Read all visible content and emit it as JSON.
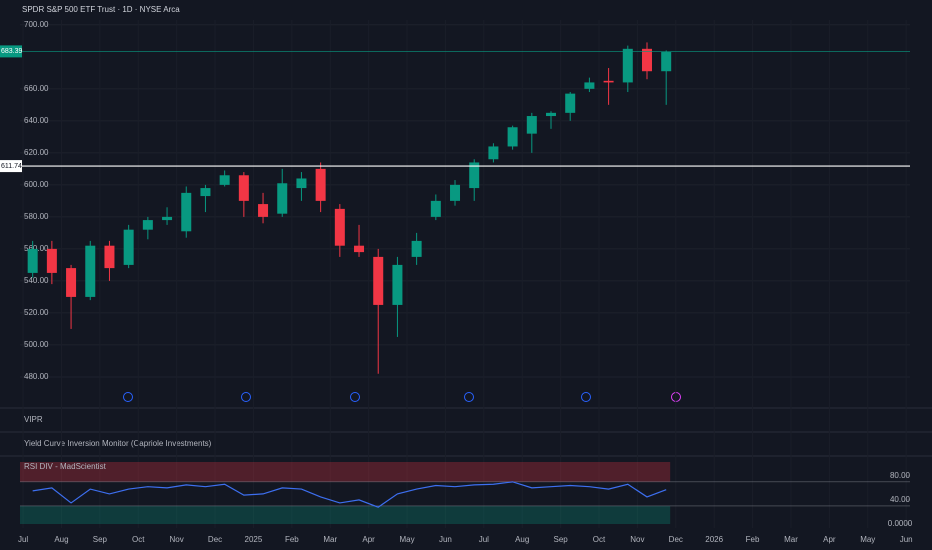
{
  "header": {
    "title": "SPDR S&P 500 ETF Trust · 1D · NYSE Arca"
  },
  "panels": [
    "VIPR",
    "Yield Curve Inversion Monitor (Capriole Investments)"
  ],
  "chart_data": [
    {
      "type": "candlestick",
      "x": [
        0.25,
        0.75,
        1.25,
        1.75,
        2.25,
        2.75,
        3.25,
        3.75,
        4.25,
        4.75,
        5.25,
        5.75,
        6.25,
        6.75,
        7.25,
        7.75,
        8.25,
        8.75,
        9.25,
        9.75,
        10.25,
        10.75,
        11.25,
        11.75,
        12.25,
        12.75,
        13.25,
        13.75,
        14.25,
        14.75,
        15.25,
        15.75,
        16.25,
        16.75
      ],
      "open": [
        545,
        560,
        548,
        530,
        562,
        550,
        572,
        578,
        571,
        593,
        600,
        606,
        588,
        582,
        598,
        610,
        585,
        562,
        555,
        525,
        555,
        580,
        590,
        598,
        616,
        624,
        632,
        643,
        645,
        660,
        665,
        664,
        685,
        671
      ],
      "high": [
        565,
        565,
        550,
        565,
        565,
        575,
        580,
        586,
        599,
        600,
        609,
        608,
        595,
        610,
        608,
        614,
        588,
        575,
        560,
        555,
        570,
        594,
        603,
        616,
        626,
        637,
        645,
        646,
        658,
        667,
        673,
        687,
        689,
        684
      ],
      "low": [
        542,
        538,
        510,
        528,
        540,
        548,
        566,
        575,
        567,
        583,
        599,
        580,
        576,
        580,
        590,
        583,
        555,
        555,
        482,
        505,
        550,
        578,
        587,
        590,
        614,
        622,
        620,
        635,
        640,
        658,
        650,
        658,
        666,
        650
      ],
      "close": [
        560,
        545,
        530,
        562,
        548,
        572,
        578,
        580,
        595,
        598,
        606,
        590,
        580,
        601,
        604,
        590,
        562,
        558,
        525,
        550,
        565,
        590,
        600,
        614,
        624,
        636,
        643,
        645,
        657,
        664,
        664,
        685,
        671,
        683
      ],
      "up_color": "#089981",
      "down_color": "#f23645",
      "xlim": [
        -0.08,
        23.1
      ],
      "xticks": [
        {
          "value": 0,
          "label": "Jul"
        },
        {
          "value": 1,
          "label": "Aug"
        },
        {
          "value": 2,
          "label": "Sep"
        },
        {
          "value": 3,
          "label": "Oct"
        },
        {
          "value": 4,
          "label": "Nov"
        },
        {
          "value": 5,
          "label": "Dec"
        },
        {
          "value": 6,
          "label": "2025"
        },
        {
          "value": 7,
          "label": "Feb"
        },
        {
          "value": 8,
          "label": "Mar"
        },
        {
          "value": 9,
          "label": "Apr"
        },
        {
          "value": 10,
          "label": "May"
        },
        {
          "value": 11,
          "label": "Jun"
        },
        {
          "value": 12,
          "label": "Jul"
        },
        {
          "value": 13,
          "label": "Aug"
        },
        {
          "value": 14,
          "label": "Sep"
        },
        {
          "value": 15,
          "label": "Oct"
        },
        {
          "value": 16,
          "label": "Nov"
        },
        {
          "value": 17,
          "label": "Dec"
        },
        {
          "value": 18,
          "label": "2026"
        },
        {
          "value": 19,
          "label": "Feb"
        },
        {
          "value": 20,
          "label": "Mar"
        },
        {
          "value": 21,
          "label": "Apr"
        },
        {
          "value": 22,
          "label": "May"
        },
        {
          "value": 23,
          "label": "Jun"
        }
      ],
      "ylim": [
        465.6,
        703
      ],
      "yticks": [
        {
          "value": 480,
          "label": "480.00"
        },
        {
          "value": 500,
          "label": "500.00"
        },
        {
          "value": 520,
          "label": "520.00"
        },
        {
          "value": 540,
          "label": "540.00"
        },
        {
          "value": 560,
          "label": "560.00"
        },
        {
          "value": 580,
          "label": "580.00"
        },
        {
          "value": 600,
          "label": "600.00"
        },
        {
          "value": 620,
          "label": "620.00"
        },
        {
          "value": 640,
          "label": "640.00"
        },
        {
          "value": 660,
          "label": "660.00"
        },
        {
          "value": 700,
          "label": "700.00"
        }
      ],
      "grid": true,
      "price_lines": [
        {
          "value": 683.39,
          "color": "#089981"
        },
        {
          "value": 611.74,
          "color": "#ffffff"
        }
      ]
    },
    {
      "type": "line",
      "title": "RSI DIV - MadScientist",
      "x": [
        0.25,
        0.75,
        1.25,
        1.75,
        2.25,
        2.75,
        3.25,
        3.75,
        4.25,
        4.75,
        5.25,
        5.75,
        6.25,
        6.75,
        7.25,
        7.75,
        8.25,
        8.75,
        9.25,
        9.75,
        10.25,
        10.75,
        11.25,
        11.75,
        12.25,
        12.75,
        13.25,
        13.75,
        14.25,
        14.75,
        15.25,
        15.75,
        16.25,
        16.75
      ],
      "series": [
        {
          "name": "RSI",
          "color": "#3d6ff0",
          "values": [
            55,
            60,
            35,
            58,
            50,
            58,
            62,
            60,
            65,
            62,
            66,
            48,
            50,
            60,
            58,
            45,
            35,
            40,
            28,
            50,
            58,
            64,
            62,
            65,
            66,
            70,
            60,
            62,
            64,
            62,
            58,
            66,
            45,
            57
          ]
        }
      ],
      "xlim": [
        -0.08,
        23.1
      ],
      "ylim": [
        0,
        103
      ],
      "yticks": [
        {
          "value": 0,
          "label": "0.0000"
        },
        {
          "value": 40,
          "label": "40.00"
        },
        {
          "value": 80,
          "label": "80.00"
        }
      ],
      "overbought": 70,
      "oversold": 30
    }
  ]
}
